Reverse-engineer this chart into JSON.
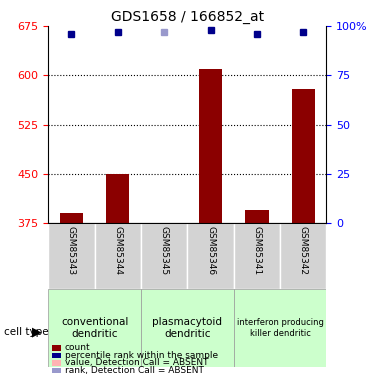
{
  "title": "GDS1658 / 166852_at",
  "samples": [
    "GSM85343",
    "GSM85344",
    "GSM85345",
    "GSM85346",
    "GSM85341",
    "GSM85342"
  ],
  "count_values": [
    390,
    450,
    370,
    610,
    395,
    580
  ],
  "count_absent": [
    false,
    false,
    true,
    false,
    false,
    false
  ],
  "rank_values": [
    96,
    97,
    97,
    98,
    96,
    97
  ],
  "rank_absent": [
    false,
    false,
    true,
    false,
    false,
    false
  ],
  "ylim_left": [
    375,
    675
  ],
  "ylim_right": [
    0,
    100
  ],
  "yticks_left": [
    375,
    450,
    525,
    600,
    675
  ],
  "yticks_right": [
    0,
    25,
    50,
    75,
    100
  ],
  "groups": [
    {
      "label": "conventional\ndendritic",
      "samples": [
        "GSM85343",
        "GSM85344"
      ],
      "color": "#ccffcc"
    },
    {
      "label": "plasmacytoid\ndendritic",
      "samples": [
        "GSM85345",
        "GSM85346"
      ],
      "color": "#ccffcc"
    },
    {
      "label": "interferon producing\nkiller dendritic",
      "samples": [
        "GSM85341",
        "GSM85342"
      ],
      "color": "#ccffcc"
    }
  ],
  "bar_color_present": "#8B0000",
  "bar_color_absent": "#ffb3b3",
  "rank_color_present": "#00008B",
  "rank_color_absent": "#9999cc",
  "bar_width": 0.5
}
